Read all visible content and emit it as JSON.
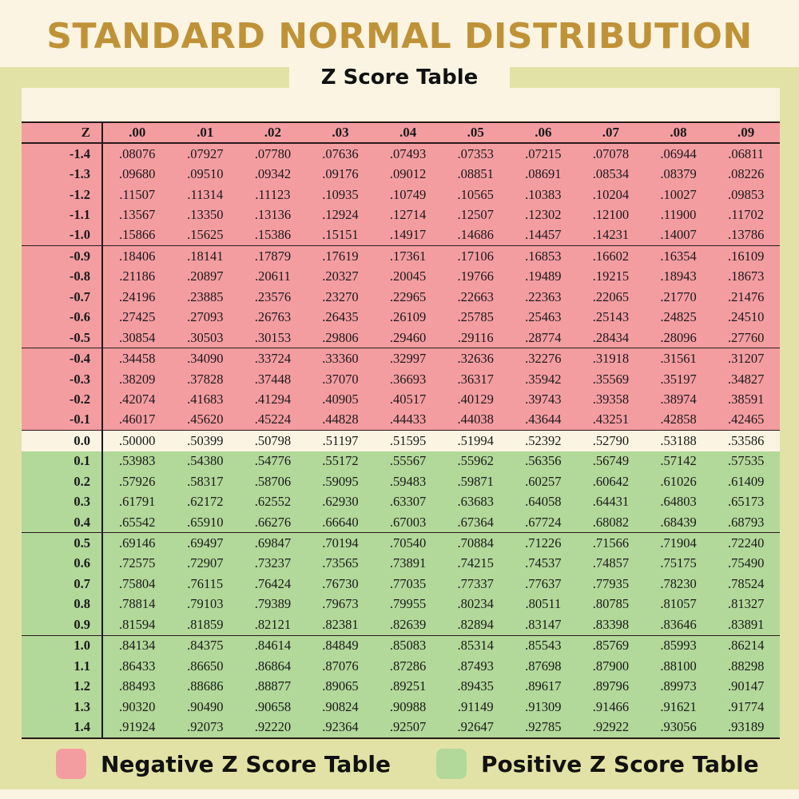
{
  "header": {
    "title": "STANDARD NORMAL DISTRIBUTION",
    "subtitle": "Z Score Table"
  },
  "colors": {
    "title": "#c09238",
    "negative": "#f49da1",
    "positive": "#b2d89a",
    "zero": "#fbf4e2",
    "frame": "#e3e2a6",
    "background": "#fbf4e2"
  },
  "table": {
    "z_header": "Z",
    "columns": [
      ".00",
      ".01",
      ".02",
      ".03",
      ".04",
      ".05",
      ".06",
      ".07",
      ".08",
      ".09"
    ]
  },
  "legend": {
    "negative_label": "Negative Z Score Table",
    "positive_label": "Positive Z Score Table"
  },
  "chart_data": {
    "type": "table",
    "title": "STANDARD NORMAL DISTRIBUTION",
    "subtitle": "Z Score Table",
    "columns": [
      "Z",
      ".00",
      ".01",
      ".02",
      ".03",
      ".04",
      ".05",
      ".06",
      ".07",
      ".08",
      ".09"
    ],
    "rows": [
      {
        "z": "-1.4",
        "sign": "neg",
        "values": [
          ".08076",
          ".07927",
          ".07780",
          ".07636",
          ".07493",
          ".07353",
          ".07215",
          ".07078",
          ".06944",
          ".06811"
        ]
      },
      {
        "z": "-1.3",
        "sign": "neg",
        "values": [
          ".09680",
          ".09510",
          ".09342",
          ".09176",
          ".09012",
          ".08851",
          ".08691",
          ".08534",
          ".08379",
          ".08226"
        ]
      },
      {
        "z": "-1.2",
        "sign": "neg",
        "values": [
          ".11507",
          ".11314",
          ".11123",
          ".10935",
          ".10749",
          ".10565",
          ".10383",
          ".10204",
          ".10027",
          ".09853"
        ]
      },
      {
        "z": "-1.1",
        "sign": "neg",
        "values": [
          ".13567",
          ".13350",
          ".13136",
          ".12924",
          ".12714",
          ".12507",
          ".12302",
          ".12100",
          ".11900",
          ".11702"
        ]
      },
      {
        "z": "-1.0",
        "sign": "neg",
        "group_end": true,
        "values": [
          ".15866",
          ".15625",
          ".15386",
          ".15151",
          ".14917",
          ".14686",
          ".14457",
          ".14231",
          ".14007",
          ".13786"
        ]
      },
      {
        "z": "-0.9",
        "sign": "neg",
        "values": [
          ".18406",
          ".18141",
          ".17879",
          ".17619",
          ".17361",
          ".17106",
          ".16853",
          ".16602",
          ".16354",
          ".16109"
        ]
      },
      {
        "z": "-0.8",
        "sign": "neg",
        "values": [
          ".21186",
          ".20897",
          ".20611",
          ".20327",
          ".20045",
          ".19766",
          ".19489",
          ".19215",
          ".18943",
          ".18673"
        ]
      },
      {
        "z": "-0.7",
        "sign": "neg",
        "values": [
          ".24196",
          ".23885",
          ".23576",
          ".23270",
          ".22965",
          ".22663",
          ".22363",
          ".22065",
          ".21770",
          ".21476"
        ]
      },
      {
        "z": "-0.6",
        "sign": "neg",
        "values": [
          ".27425",
          ".27093",
          ".26763",
          ".26435",
          ".26109",
          ".25785",
          ".25463",
          ".25143",
          ".24825",
          ".24510"
        ]
      },
      {
        "z": "-0.5",
        "sign": "neg",
        "group_end": true,
        "values": [
          ".30854",
          ".30503",
          ".30153",
          ".29806",
          ".29460",
          ".29116",
          ".28774",
          ".28434",
          ".28096",
          ".27760"
        ]
      },
      {
        "z": "-0.4",
        "sign": "neg",
        "values": [
          ".34458",
          ".34090",
          ".33724",
          ".33360",
          ".32997",
          ".32636",
          ".32276",
          ".31918",
          ".31561",
          ".31207"
        ]
      },
      {
        "z": "-0.3",
        "sign": "neg",
        "values": [
          ".38209",
          ".37828",
          ".37448",
          ".37070",
          ".36693",
          ".36317",
          ".35942",
          ".35569",
          ".35197",
          ".34827"
        ]
      },
      {
        "z": "-0.2",
        "sign": "neg",
        "values": [
          ".42074",
          ".41683",
          ".41294",
          ".40905",
          ".40517",
          ".40129",
          ".39743",
          ".39358",
          ".38974",
          ".38591"
        ]
      },
      {
        "z": "-0.1",
        "sign": "neg",
        "group_end": true,
        "values": [
          ".46017",
          ".45620",
          ".45224",
          ".44828",
          ".44433",
          ".44038",
          ".43644",
          ".43251",
          ".42858",
          ".42465"
        ]
      },
      {
        "z": "0.0",
        "sign": "zero",
        "values": [
          ".50000",
          ".50399",
          ".50798",
          ".51197",
          ".51595",
          ".51994",
          ".52392",
          ".52790",
          ".53188",
          ".53586"
        ]
      },
      {
        "z": "0.1",
        "sign": "pos",
        "values": [
          ".53983",
          ".54380",
          ".54776",
          ".55172",
          ".55567",
          ".55962",
          ".56356",
          ".56749",
          ".57142",
          ".57535"
        ]
      },
      {
        "z": "0.2",
        "sign": "pos",
        "values": [
          ".57926",
          ".58317",
          ".58706",
          ".59095",
          ".59483",
          ".59871",
          ".60257",
          ".60642",
          ".61026",
          ".61409"
        ]
      },
      {
        "z": "0.3",
        "sign": "pos",
        "values": [
          ".61791",
          ".62172",
          ".62552",
          ".62930",
          ".63307",
          ".63683",
          ".64058",
          ".64431",
          ".64803",
          ".65173"
        ]
      },
      {
        "z": "0.4",
        "sign": "pos",
        "group_end": true,
        "values": [
          ".65542",
          ".65910",
          ".66276",
          ".66640",
          ".67003",
          ".67364",
          ".67724",
          ".68082",
          ".68439",
          ".68793"
        ]
      },
      {
        "z": "0.5",
        "sign": "pos",
        "values": [
          ".69146",
          ".69497",
          ".69847",
          ".70194",
          ".70540",
          ".70884",
          ".71226",
          ".71566",
          ".71904",
          ".72240"
        ]
      },
      {
        "z": "0.6",
        "sign": "pos",
        "values": [
          ".72575",
          ".72907",
          ".73237",
          ".73565",
          ".73891",
          ".74215",
          ".74537",
          ".74857",
          ".75175",
          ".75490"
        ]
      },
      {
        "z": "0.7",
        "sign": "pos",
        "values": [
          ".75804",
          ".76115",
          ".76424",
          ".76730",
          ".77035",
          ".77337",
          ".77637",
          ".77935",
          ".78230",
          ".78524"
        ]
      },
      {
        "z": "0.8",
        "sign": "pos",
        "values": [
          ".78814",
          ".79103",
          ".79389",
          ".79673",
          ".79955",
          ".80234",
          ".80511",
          ".80785",
          ".81057",
          ".81327"
        ]
      },
      {
        "z": "0.9",
        "sign": "pos",
        "group_end": true,
        "values": [
          ".81594",
          ".81859",
          ".82121",
          ".82381",
          ".82639",
          ".82894",
          ".83147",
          ".83398",
          ".83646",
          ".83891"
        ]
      },
      {
        "z": "1.0",
        "sign": "pos",
        "values": [
          ".84134",
          ".84375",
          ".84614",
          ".84849",
          ".85083",
          ".85314",
          ".85543",
          ".85769",
          ".85993",
          ".86214"
        ]
      },
      {
        "z": "1.1",
        "sign": "pos",
        "values": [
          ".86433",
          ".86650",
          ".86864",
          ".87076",
          ".87286",
          ".87493",
          ".87698",
          ".87900",
          ".88100",
          ".88298"
        ]
      },
      {
        "z": "1.2",
        "sign": "pos",
        "values": [
          ".88493",
          ".88686",
          ".88877",
          ".89065",
          ".89251",
          ".89435",
          ".89617",
          ".89796",
          ".89973",
          ".90147"
        ]
      },
      {
        "z": "1.3",
        "sign": "pos",
        "values": [
          ".90320",
          ".90490",
          ".90658",
          ".90824",
          ".90988",
          ".91149",
          ".91309",
          ".91466",
          ".91621",
          ".91774"
        ]
      },
      {
        "z": "1.4",
        "sign": "pos",
        "last": true,
        "values": [
          ".91924",
          ".92073",
          ".92220",
          ".92364",
          ".92507",
          ".92647",
          ".92785",
          ".92922",
          ".93056",
          ".93189"
        ]
      }
    ],
    "legend": [
      {
        "label": "Negative Z Score Table",
        "color": "#f49da1"
      },
      {
        "label": "Positive Z Score Table",
        "color": "#b2d89a"
      }
    ]
  }
}
